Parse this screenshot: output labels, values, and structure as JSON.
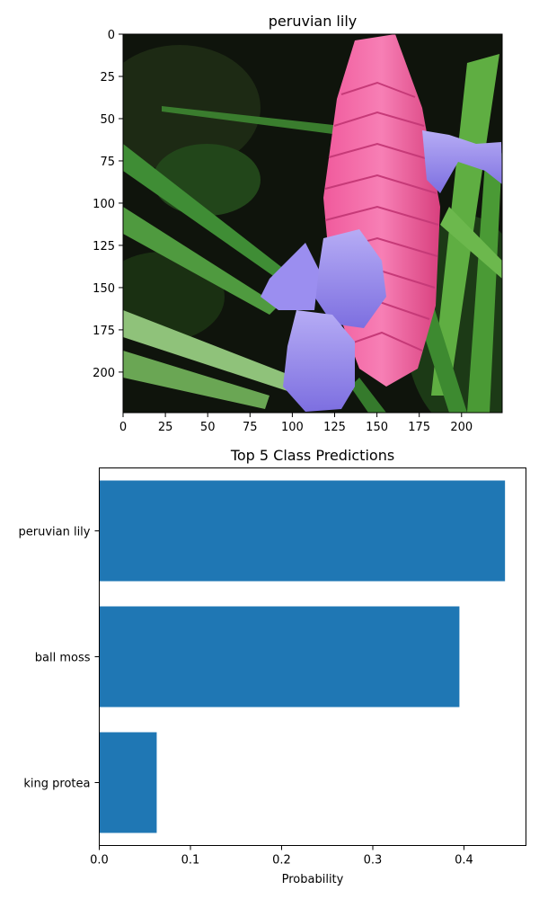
{
  "chart_data": [
    {
      "type": "image",
      "title": "peruvian lily",
      "xlim": [
        0,
        224
      ],
      "ylim": [
        224,
        0
      ],
      "xticks": [
        0,
        25,
        50,
        75,
        100,
        125,
        150,
        175,
        200
      ],
      "yticks": [
        0,
        25,
        50,
        75,
        100,
        125,
        150,
        175,
        200
      ],
      "xtick_labels": [
        "0",
        "25",
        "50",
        "75",
        "100",
        "125",
        "150",
        "175",
        "200"
      ],
      "ytick_labels": [
        "0",
        "25",
        "50",
        "75",
        "100",
        "125",
        "150",
        "175",
        "200"
      ]
    },
    {
      "type": "bar",
      "orientation": "horizontal",
      "title": "Top 5 Class Predictions",
      "xlabel": "Probability",
      "ylabel": "",
      "categories": [
        "peruvian lily",
        "ball moss",
        "king protea"
      ],
      "values": [
        0.445,
        0.395,
        0.063
      ],
      "xlim": [
        0,
        0.468
      ],
      "xticks": [
        0.0,
        0.1,
        0.2,
        0.3,
        0.4
      ],
      "xtick_labels": [
        "0.0",
        "0.1",
        "0.2",
        "0.3",
        "0.4"
      ],
      "bar_color": "#1f77b4",
      "grid": false
    }
  ],
  "colors": {
    "bar": "#1f77b4",
    "flower_pink": "#e8508f",
    "flower_purple": "#8f80e8",
    "leaf_green": "#2f7a2a",
    "background_dark": "#0f140c"
  }
}
